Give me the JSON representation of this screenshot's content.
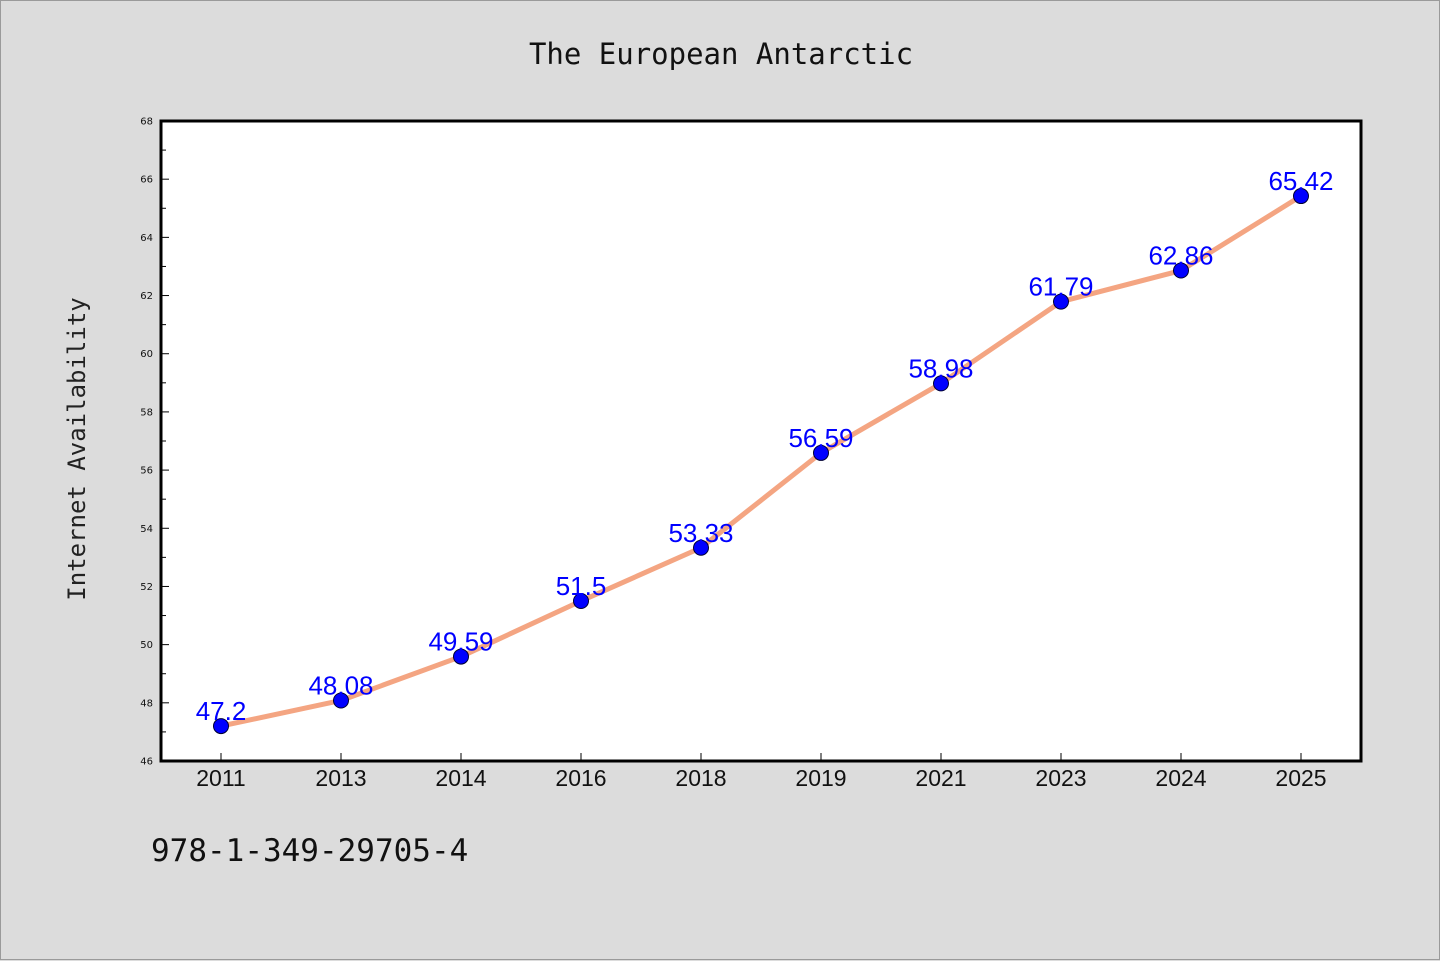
{
  "chart_data": {
    "type": "line",
    "title": "The European Antarctic",
    "xlabel": "",
    "ylabel": "Internet Availability",
    "categories": [
      "2011",
      "2013",
      "2014",
      "2016",
      "2018",
      "2019",
      "2021",
      "2023",
      "2024",
      "2025"
    ],
    "series": [
      {
        "values": [
          47.2,
          48.08,
          49.59,
          51.5,
          53.33,
          56.59,
          58.98,
          61.79,
          62.86,
          65.42
        ]
      }
    ],
    "data_labels": [
      "47.2",
      "48.08",
      "49.59",
      "51.5",
      "53.33",
      "56.59",
      "58.98",
      "61.79",
      "62.86",
      "65.42"
    ],
    "ylim": [
      46,
      68
    ],
    "yticks": [
      "46",
      "48",
      "50",
      "52",
      "54",
      "56",
      "58",
      "60",
      "62",
      "64",
      "66",
      "68"
    ],
    "grid": false,
    "legend": "none",
    "colors": {
      "line": "#f4a582",
      "marker": "#0000ff",
      "label": "#0000ff",
      "background": "#dcdcdc",
      "plot_bg": "#ffffff"
    }
  },
  "footer": {
    "text": "978-1-349-29705-4"
  }
}
